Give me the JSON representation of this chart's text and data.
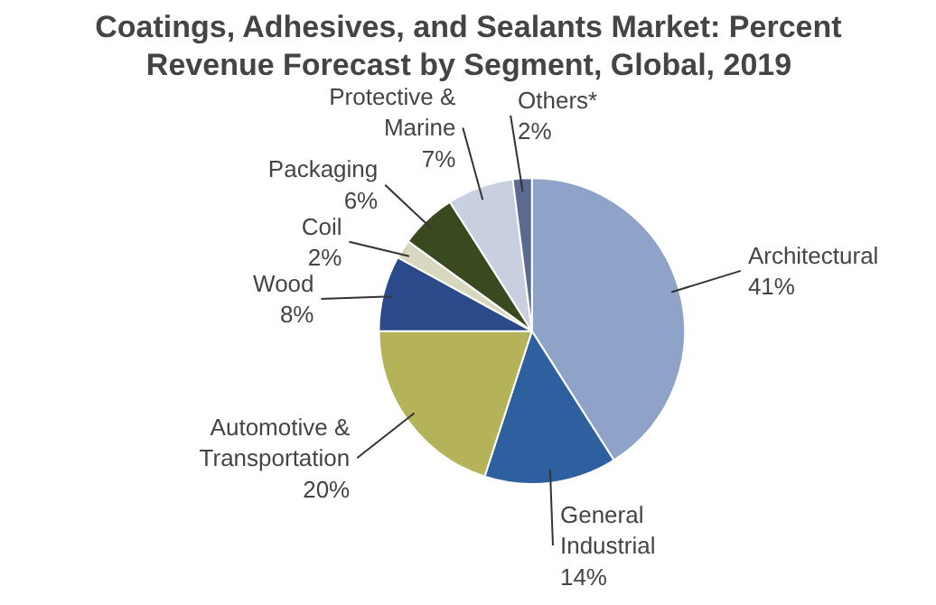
{
  "chart_data": {
    "type": "pie",
    "title": "Coatings, Adhesives, and Sealants Market: Percent\nRevenue Forecast by Segment, Global, 2019",
    "categories": [
      "Architectural",
      "General Industrial",
      "Automotive & Transportation",
      "Wood",
      "Coil",
      "Packaging",
      "Protective & Marine",
      "Others*"
    ],
    "values": [
      41,
      14,
      20,
      8,
      2,
      6,
      7,
      2
    ],
    "value_labels": [
      "41%",
      "14%",
      "20%",
      "8%",
      "2%",
      "6%",
      "7%",
      "2%"
    ],
    "colors": [
      "#8fa3c8",
      "#2e5f9e",
      "#b5b35a",
      "#2a4a8a",
      "#d8d8c0",
      "#3a4a20",
      "#c8d0e0",
      "#5a6a90"
    ]
  }
}
